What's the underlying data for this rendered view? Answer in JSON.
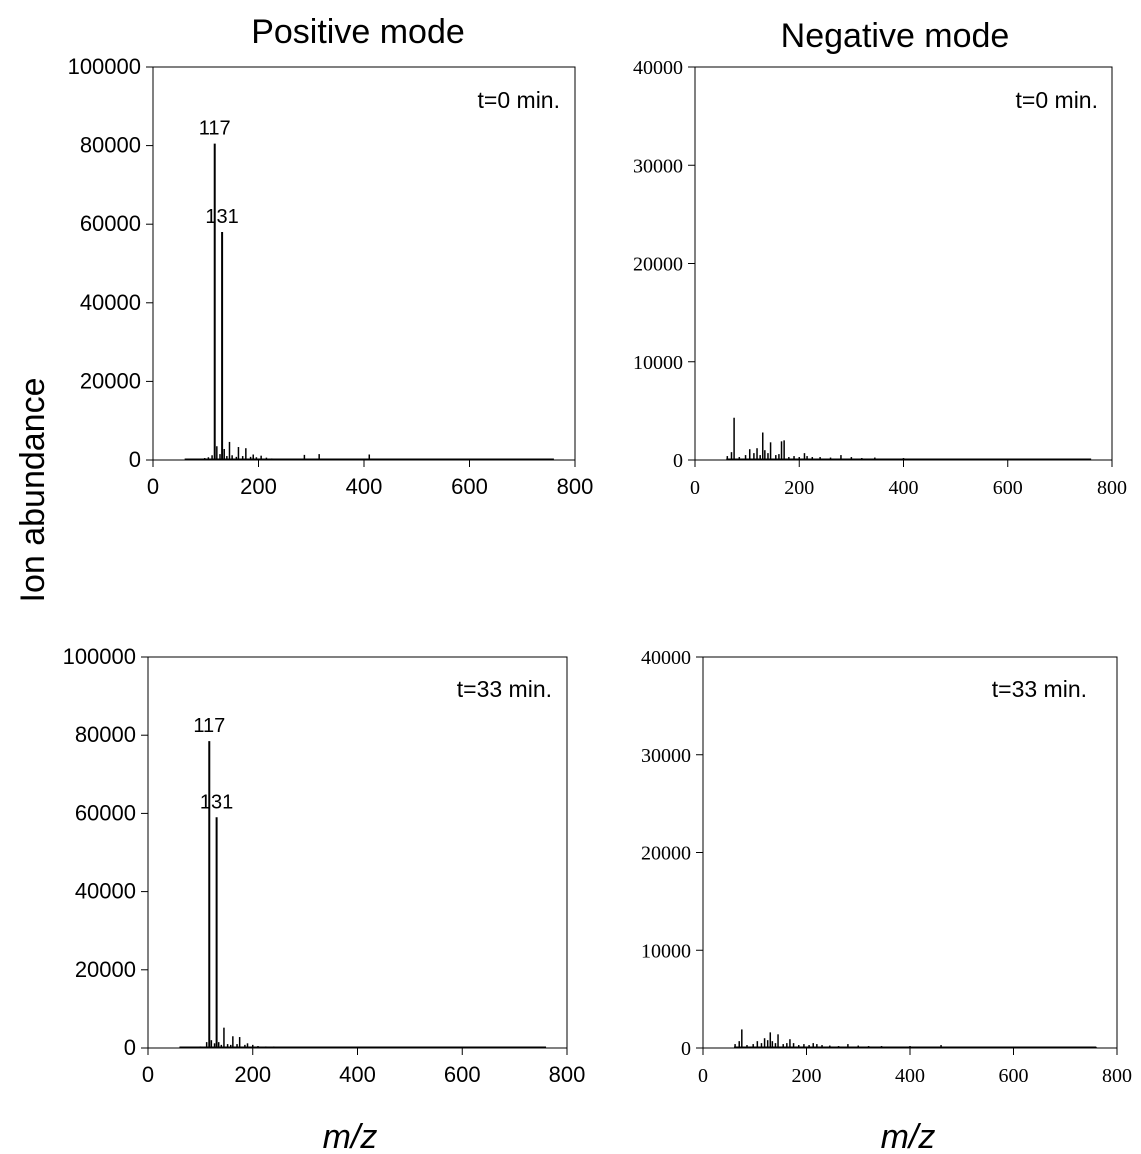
{
  "figure": {
    "col_titles": [
      "Positive mode",
      "Negative mode"
    ],
    "ylabel": "Ion abundance",
    "xlabel": "m/z"
  },
  "chart_data": [
    {
      "type": "bar",
      "panel_label": "t=0 min.",
      "xlim": [
        0,
        800
      ],
      "ylim": [
        0,
        100000
      ],
      "xticks": [
        "0",
        "200",
        "400",
        "600",
        "800"
      ],
      "yticks": [
        "0",
        "20000",
        "40000",
        "60000",
        "80000",
        "100000"
      ],
      "peaks": [
        {
          "x": 117,
          "y": 80500,
          "label": "117"
        },
        {
          "x": 131,
          "y": 58000,
          "label": "131"
        },
        {
          "x": 85,
          "y": 300
        },
        {
          "x": 98,
          "y": 500
        },
        {
          "x": 105,
          "y": 700
        },
        {
          "x": 112,
          "y": 1200
        },
        {
          "x": 121,
          "y": 3500
        },
        {
          "x": 127,
          "y": 1500
        },
        {
          "x": 135,
          "y": 2800
        },
        {
          "x": 140,
          "y": 1000
        },
        {
          "x": 145,
          "y": 4600
        },
        {
          "x": 150,
          "y": 1200
        },
        {
          "x": 158,
          "y": 800
        },
        {
          "x": 162,
          "y": 3300
        },
        {
          "x": 170,
          "y": 1000
        },
        {
          "x": 176,
          "y": 3000
        },
        {
          "x": 185,
          "y": 800
        },
        {
          "x": 190,
          "y": 1400
        },
        {
          "x": 196,
          "y": 700
        },
        {
          "x": 205,
          "y": 1100
        },
        {
          "x": 215,
          "y": 600
        },
        {
          "x": 225,
          "y": 400
        },
        {
          "x": 240,
          "y": 300
        },
        {
          "x": 260,
          "y": 350
        },
        {
          "x": 287,
          "y": 1300
        },
        {
          "x": 300,
          "y": 300
        },
        {
          "x": 315,
          "y": 1500
        },
        {
          "x": 330,
          "y": 300
        },
        {
          "x": 350,
          "y": 250
        },
        {
          "x": 380,
          "y": 200
        },
        {
          "x": 410,
          "y": 1400
        },
        {
          "x": 430,
          "y": 250
        },
        {
          "x": 460,
          "y": 200
        },
        {
          "x": 500,
          "y": 150
        },
        {
          "x": 540,
          "y": 120
        },
        {
          "x": 600,
          "y": 100
        },
        {
          "x": 650,
          "y": 100
        }
      ]
    },
    {
      "type": "bar",
      "panel_label": "t=0 min.",
      "xlim": [
        0,
        800
      ],
      "ylim": [
        0,
        40000
      ],
      "xticks": [
        "0",
        "200",
        "400",
        "600",
        "800"
      ],
      "yticks": [
        "0",
        "10000",
        "20000",
        "30000",
        "40000"
      ],
      "peaks": [
        {
          "x": 62,
          "y": 400
        },
        {
          "x": 70,
          "y": 800
        },
        {
          "x": 75,
          "y": 4300
        },
        {
          "x": 85,
          "y": 300
        },
        {
          "x": 97,
          "y": 500
        },
        {
          "x": 105,
          "y": 1100
        },
        {
          "x": 113,
          "y": 700
        },
        {
          "x": 119,
          "y": 1200
        },
        {
          "x": 125,
          "y": 500
        },
        {
          "x": 130,
          "y": 2800
        },
        {
          "x": 134,
          "y": 1000
        },
        {
          "x": 140,
          "y": 700
        },
        {
          "x": 145,
          "y": 1800
        },
        {
          "x": 155,
          "y": 500
        },
        {
          "x": 161,
          "y": 600
        },
        {
          "x": 166,
          "y": 1900
        },
        {
          "x": 171,
          "y": 2000
        },
        {
          "x": 180,
          "y": 300
        },
        {
          "x": 190,
          "y": 400
        },
        {
          "x": 200,
          "y": 300
        },
        {
          "x": 210,
          "y": 700
        },
        {
          "x": 215,
          "y": 400
        },
        {
          "x": 225,
          "y": 300
        },
        {
          "x": 240,
          "y": 300
        },
        {
          "x": 260,
          "y": 250
        },
        {
          "x": 280,
          "y": 500
        },
        {
          "x": 300,
          "y": 300
        },
        {
          "x": 320,
          "y": 200
        },
        {
          "x": 345,
          "y": 250
        },
        {
          "x": 375,
          "y": 150
        },
        {
          "x": 400,
          "y": 200
        },
        {
          "x": 450,
          "y": 120
        },
        {
          "x": 500,
          "y": 100
        },
        {
          "x": 560,
          "y": 100
        },
        {
          "x": 620,
          "y": 80
        },
        {
          "x": 700,
          "y": 80
        },
        {
          "x": 750,
          "y": 80
        }
      ]
    },
    {
      "type": "bar",
      "panel_label": "t=33 min.",
      "xlim": [
        0,
        800
      ],
      "ylim": [
        0,
        100000
      ],
      "xticks": [
        "0",
        "200",
        "400",
        "600",
        "800"
      ],
      "yticks": [
        "0",
        "20000",
        "40000",
        "60000",
        "80000",
        "100000"
      ],
      "peaks": [
        {
          "x": 117,
          "y": 78500,
          "label": "117"
        },
        {
          "x": 131,
          "y": 59000,
          "label": "131"
        },
        {
          "x": 70,
          "y": 200
        },
        {
          "x": 85,
          "y": 300
        },
        {
          "x": 100,
          "y": 400
        },
        {
          "x": 112,
          "y": 1500
        },
        {
          "x": 121,
          "y": 2000
        },
        {
          "x": 127,
          "y": 1200
        },
        {
          "x": 135,
          "y": 1500
        },
        {
          "x": 140,
          "y": 800
        },
        {
          "x": 145,
          "y": 5200
        },
        {
          "x": 152,
          "y": 1000
        },
        {
          "x": 158,
          "y": 800
        },
        {
          "x": 162,
          "y": 3000
        },
        {
          "x": 170,
          "y": 1000
        },
        {
          "x": 175,
          "y": 2800
        },
        {
          "x": 185,
          "y": 800
        },
        {
          "x": 190,
          "y": 1200
        },
        {
          "x": 200,
          "y": 800
        },
        {
          "x": 210,
          "y": 500
        },
        {
          "x": 225,
          "y": 400
        },
        {
          "x": 240,
          "y": 400
        },
        {
          "x": 255,
          "y": 300
        },
        {
          "x": 275,
          "y": 300
        },
        {
          "x": 300,
          "y": 300
        },
        {
          "x": 325,
          "y": 250
        },
        {
          "x": 350,
          "y": 200
        },
        {
          "x": 380,
          "y": 200
        },
        {
          "x": 410,
          "y": 300
        },
        {
          "x": 440,
          "y": 250
        },
        {
          "x": 480,
          "y": 150
        },
        {
          "x": 520,
          "y": 120
        },
        {
          "x": 560,
          "y": 100
        },
        {
          "x": 600,
          "y": 100
        },
        {
          "x": 640,
          "y": 80
        }
      ]
    },
    {
      "type": "bar",
      "panel_label": "t=33 min.",
      "xlim": [
        0,
        800
      ],
      "ylim": [
        0,
        40000
      ],
      "xticks": [
        "0",
        "200",
        "400",
        "600",
        "800"
      ],
      "yticks": [
        "0",
        "10000",
        "20000",
        "30000",
        "40000"
      ],
      "peaks": [
        {
          "x": 62,
          "y": 400
        },
        {
          "x": 70,
          "y": 700
        },
        {
          "x": 75,
          "y": 1900
        },
        {
          "x": 85,
          "y": 300
        },
        {
          "x": 97,
          "y": 400
        },
        {
          "x": 105,
          "y": 700
        },
        {
          "x": 113,
          "y": 500
        },
        {
          "x": 119,
          "y": 1000
        },
        {
          "x": 125,
          "y": 800
        },
        {
          "x": 130,
          "y": 1600
        },
        {
          "x": 134,
          "y": 700
        },
        {
          "x": 140,
          "y": 500
        },
        {
          "x": 145,
          "y": 1400
        },
        {
          "x": 155,
          "y": 400
        },
        {
          "x": 162,
          "y": 500
        },
        {
          "x": 168,
          "y": 900
        },
        {
          "x": 175,
          "y": 500
        },
        {
          "x": 185,
          "y": 300
        },
        {
          "x": 195,
          "y": 400
        },
        {
          "x": 205,
          "y": 300
        },
        {
          "x": 213,
          "y": 500
        },
        {
          "x": 220,
          "y": 400
        },
        {
          "x": 230,
          "y": 300
        },
        {
          "x": 245,
          "y": 250
        },
        {
          "x": 262,
          "y": 200
        },
        {
          "x": 280,
          "y": 400
        },
        {
          "x": 300,
          "y": 250
        },
        {
          "x": 320,
          "y": 200
        },
        {
          "x": 345,
          "y": 200
        },
        {
          "x": 375,
          "y": 150
        },
        {
          "x": 400,
          "y": 200
        },
        {
          "x": 430,
          "y": 150
        },
        {
          "x": 460,
          "y": 300
        },
        {
          "x": 500,
          "y": 100
        },
        {
          "x": 560,
          "y": 100
        },
        {
          "x": 620,
          "y": 80
        },
        {
          "x": 700,
          "y": 80
        },
        {
          "x": 760,
          "y": 80
        }
      ]
    }
  ]
}
